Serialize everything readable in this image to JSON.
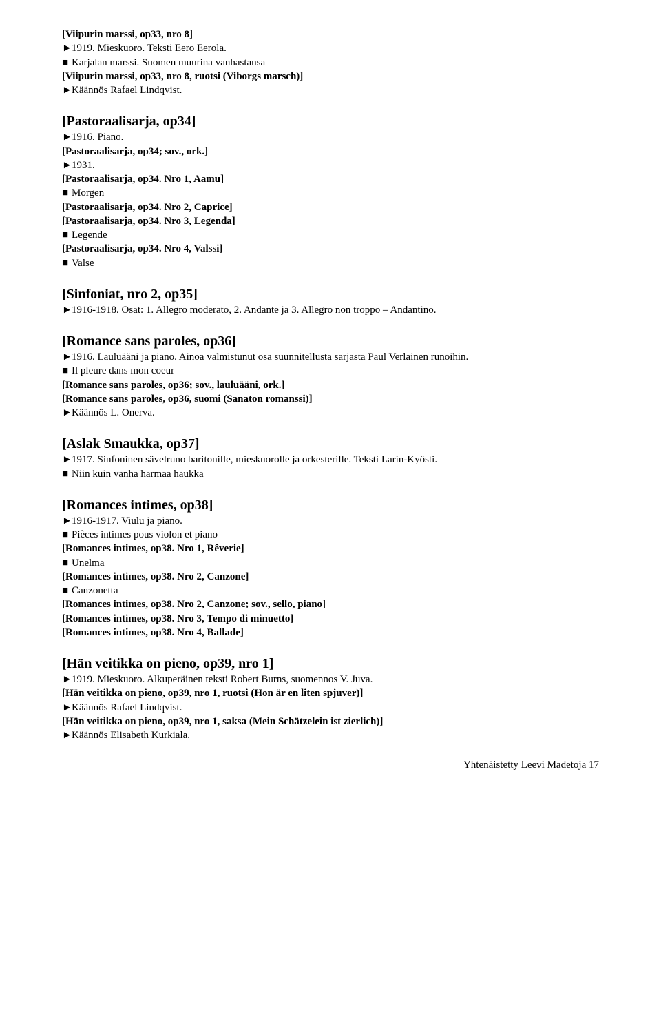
{
  "markers": {
    "tri": "►",
    "sq": "■"
  },
  "footer": "Yhtenäistetty Leevi Madetoja   17",
  "s1": {
    "h": "[Viipurin marssi, op33, nro 8]",
    "l1_pre": "1919. Mieskuoro. Teksti Eero Eerola.",
    "l2_pre": "Karjalan marssi. Suomen muurina vanhastansa",
    "b1": "[Viipurin marssi, op33, nro 8, ruotsi (Viborgs marsch)]",
    "l3_pre": "Käännös Rafael Lindqvist."
  },
  "s2": {
    "h": "[Pastoraalisarja, op34]",
    "l1_pre": "1916. Piano.",
    "b1": "[Pastoraalisarja, op34; sov., ork.]",
    "l2_pre": "1931.",
    "b2": "[Pastoraalisarja, op34. Nro 1, Aamu]",
    "l3_pre": "Morgen",
    "b3": "[Pastoraalisarja, op34. Nro 2, Caprice]",
    "b4": "[Pastoraalisarja, op34. Nro 3, Legenda]",
    "l4_pre": "Legende",
    "b5": "[Pastoraalisarja, op34. Nro 4, Valssi]",
    "l5_pre": "Valse"
  },
  "s3": {
    "h": "[Sinfoniat, nro 2, op35]",
    "l1_pre": "1916-1918. Osat: 1. Allegro moderato, 2. Andante ja 3. Allegro non troppo – Andantino."
  },
  "s4": {
    "h": "[Romance sans paroles, op36]",
    "l1_pre": "1916. Lauluääni ja piano. Ainoa valmistunut osa suunnitellusta sarjasta Paul Verlainen runoihin.",
    "l2_pre": "Il pleure dans mon coeur",
    "b1": "[Romance sans paroles, op36; sov., lauluääni, ork.]",
    "b2": "[Romance sans paroles, op36, suomi (Sanaton romanssi)]",
    "l3_pre": "Käännös L. Onerva."
  },
  "s5": {
    "h": "[Aslak Smaukka, op37]",
    "l1_pre": "1917. Sinfoninen sävelruno baritonille, mieskuorolle ja orkesterille. Teksti Larin-Kyösti.",
    "l2_pre": "Niin kuin vanha harmaa haukka"
  },
  "s6": {
    "h": "[Romances intimes, op38]",
    "l1_pre": "1916-1917. Viulu ja piano.",
    "l2_pre": "Pièces intimes pous violon et piano",
    "b1": "[Romances intimes, op38. Nro 1, Rêverie]",
    "l3_pre": "Unelma",
    "b2": "[Romances intimes, op38. Nro 2, Canzone]",
    "l4_pre": "Canzonetta",
    "b3": "[Romances intimes, op38. Nro 2, Canzone; sov., sello, piano]",
    "b4": "[Romances intimes, op38. Nro 3, Tempo di minuetto]",
    "b5": "[Romances intimes, op38. Nro 4, Ballade]"
  },
  "s7": {
    "h": "[Hän veitikka on pieno, op39, nro 1]",
    "l1_pre": "1919. Mieskuoro. Alkuperäinen teksti Robert Burns, suomennos V. Juva.",
    "b1": "[Hän veitikka on pieno, op39, nro 1, ruotsi (Hon är en liten spjuver)]",
    "l2_pre": "Käännös Rafael Lindqvist.",
    "b2": "[Hän veitikka on pieno, op39, nro 1, saksa (Mein Schätzelein ist zierlich)]",
    "l3_pre": "Käännös Elisabeth Kurkiala."
  }
}
